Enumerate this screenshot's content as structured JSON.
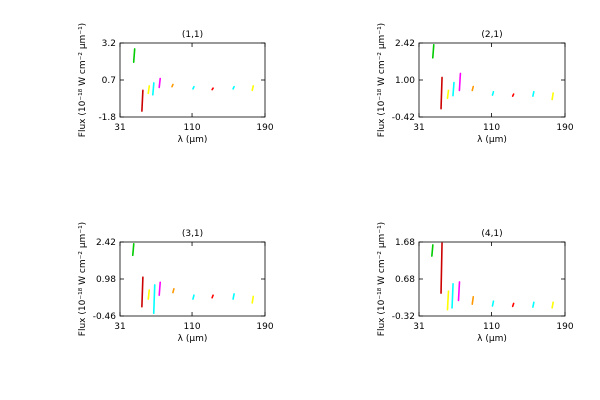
{
  "chart_data": [
    {
      "type": "scatter",
      "title": "(1,1)",
      "xlabel": "λ (μm)",
      "ylabel": "Flux (10⁻¹⁸ W cm⁻² μm⁻¹)",
      "xlim": [
        31,
        190
      ],
      "ylim": [
        -1.8,
        3.2
      ],
      "xticks": [
        31,
        110,
        190
      ],
      "yticks": [
        -1.8,
        0.7,
        3.2
      ],
      "grid": false,
      "series": [
        {
          "x": 46,
          "y0": 1.9,
          "y1": 2.8,
          "color": "#00cc00"
        },
        {
          "x": 55,
          "y0": -1.4,
          "y1": 0.0,
          "color": "#cc0000"
        },
        {
          "x": 62,
          "y0": -0.2,
          "y1": 0.3,
          "color": "#ffff00"
        },
        {
          "x": 67,
          "y0": -0.3,
          "y1": 0.5,
          "color": "#00ffff"
        },
        {
          "x": 74,
          "y0": 0.2,
          "y1": 0.8,
          "color": "#ff00ff"
        },
        {
          "x": 88,
          "y0": 0.25,
          "y1": 0.4,
          "color": "#ff9900"
        },
        {
          "x": 111,
          "y0": 0.1,
          "y1": 0.25,
          "color": "#00ffff"
        },
        {
          "x": 132,
          "y0": 0.05,
          "y1": 0.15,
          "color": "#ff0000"
        },
        {
          "x": 155,
          "y0": 0.1,
          "y1": 0.25,
          "color": "#00ffff"
        },
        {
          "x": 176,
          "y0": 0.0,
          "y1": 0.3,
          "color": "#ffff00"
        }
      ]
    },
    {
      "type": "scatter",
      "title": "(2,1)",
      "xlabel": "λ (μm)",
      "ylabel": "Flux (10⁻¹⁸ W cm⁻² μm⁻¹)",
      "xlim": [
        31,
        190
      ],
      "ylim": [
        -0.42,
        2.42
      ],
      "xticks": [
        31,
        110,
        190
      ],
      "yticks": [
        -0.42,
        1.0,
        2.42
      ],
      "grid": false,
      "series": [
        {
          "x": 46,
          "y0": 1.85,
          "y1": 2.35,
          "color": "#00cc00"
        },
        {
          "x": 55,
          "y0": -0.1,
          "y1": 1.1,
          "color": "#cc0000"
        },
        {
          "x": 62,
          "y0": 0.3,
          "y1": 0.6,
          "color": "#ffff00"
        },
        {
          "x": 68,
          "y0": 0.4,
          "y1": 0.9,
          "color": "#00ffff"
        },
        {
          "x": 75,
          "y0": 0.6,
          "y1": 1.25,
          "color": "#ff00ff"
        },
        {
          "x": 89,
          "y0": 0.6,
          "y1": 0.75,
          "color": "#ff9900"
        },
        {
          "x": 111,
          "y0": 0.42,
          "y1": 0.55,
          "color": "#00ffff"
        },
        {
          "x": 133,
          "y0": 0.38,
          "y1": 0.46,
          "color": "#ff0000"
        },
        {
          "x": 155,
          "y0": 0.38,
          "y1": 0.55,
          "color": "#00ffff"
        },
        {
          "x": 176,
          "y0": 0.25,
          "y1": 0.5,
          "color": "#ffff00"
        }
      ]
    },
    {
      "type": "scatter",
      "title": "(3,1)",
      "xlabel": "λ (μm)",
      "ylabel": "Flux (10⁻¹⁸ W cm⁻² μm⁻¹)",
      "xlim": [
        31,
        190
      ],
      "ylim": [
        -0.46,
        2.42
      ],
      "xticks": [
        31,
        110,
        190
      ],
      "yticks": [
        -0.46,
        0.98,
        2.42
      ],
      "grid": false,
      "series": [
        {
          "x": 45,
          "y0": 1.9,
          "y1": 2.35,
          "color": "#00cc00"
        },
        {
          "x": 55,
          "y0": -0.1,
          "y1": 1.05,
          "color": "#cc0000"
        },
        {
          "x": 62,
          "y0": 0.2,
          "y1": 0.55,
          "color": "#ffff00"
        },
        {
          "x": 68,
          "y0": -0.35,
          "y1": 0.75,
          "color": "#00ffff"
        },
        {
          "x": 74,
          "y0": 0.35,
          "y1": 0.85,
          "color": "#ff00ff"
        },
        {
          "x": 89,
          "y0": 0.45,
          "y1": 0.6,
          "color": "#ff9900"
        },
        {
          "x": 111,
          "y0": 0.2,
          "y1": 0.35,
          "color": "#00ffff"
        },
        {
          "x": 132,
          "y0": 0.25,
          "y1": 0.35,
          "color": "#ff0000"
        },
        {
          "x": 155,
          "y0": 0.2,
          "y1": 0.4,
          "color": "#00ffff"
        },
        {
          "x": 176,
          "y0": 0.05,
          "y1": 0.3,
          "color": "#ffff00"
        }
      ]
    },
    {
      "type": "scatter",
      "title": "(4,1)",
      "xlabel": "λ (μm)",
      "ylabel": "Flux (10⁻¹⁸ W cm⁻² μm⁻¹)",
      "xlim": [
        31,
        190
      ],
      "ylim": [
        -0.32,
        1.68
      ],
      "xticks": [
        31,
        110,
        190
      ],
      "yticks": [
        -0.32,
        0.68,
        1.68
      ],
      "grid": false,
      "series": [
        {
          "x": 45,
          "y0": 1.3,
          "y1": 1.6,
          "color": "#00cc00"
        },
        {
          "x": 55,
          "y0": 0.3,
          "y1": 1.65,
          "color": "#cc0000"
        },
        {
          "x": 62,
          "y0": -0.15,
          "y1": 0.35,
          "color": "#ffff00"
        },
        {
          "x": 67,
          "y0": -0.1,
          "y1": 0.55,
          "color": "#00ffff"
        },
        {
          "x": 74,
          "y0": 0.1,
          "y1": 0.6,
          "color": "#ff00ff"
        },
        {
          "x": 89,
          "y0": 0.0,
          "y1": 0.2,
          "color": "#ff9900"
        },
        {
          "x": 111,
          "y0": -0.05,
          "y1": 0.08,
          "color": "#00ffff"
        },
        {
          "x": 133,
          "y0": -0.06,
          "y1": 0.02,
          "color": "#ff0000"
        },
        {
          "x": 155,
          "y0": -0.08,
          "y1": 0.05,
          "color": "#00ffff"
        },
        {
          "x": 176,
          "y0": -0.1,
          "y1": 0.05,
          "color": "#ffff00"
        }
      ]
    }
  ]
}
